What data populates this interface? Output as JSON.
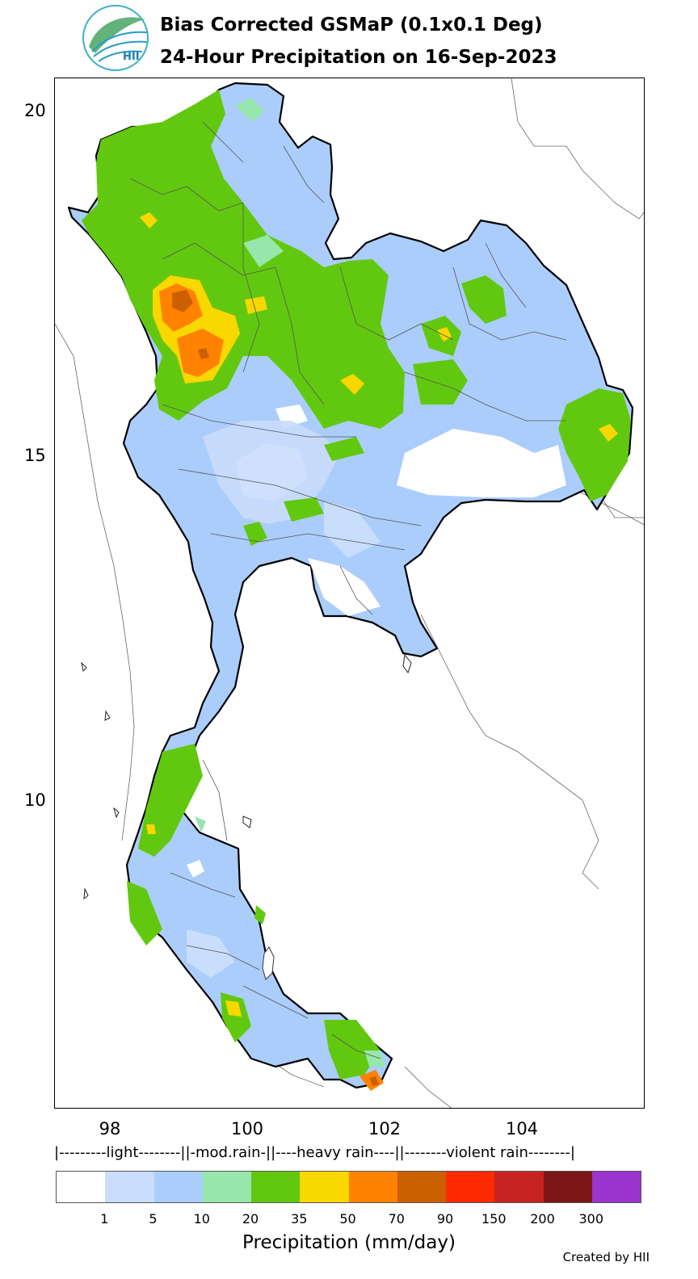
{
  "header": {
    "title_line1": "Bias Corrected GSMaP (0.1x0.1 Deg)",
    "title_line2": "24-Hour Precipitation on 16-Sep-2023",
    "logo_text": "HII"
  },
  "map": {
    "y_ticks": [
      "20",
      "15",
      "10"
    ],
    "x_ticks": [
      "98",
      "100",
      "102",
      "104"
    ]
  },
  "legend": {
    "categories_line": "|---------light--------||-mod.rain-||----heavy rain----||--------violent rain--------|",
    "colors": [
      "#ffffff",
      "#c9ddfc",
      "#abcdfb",
      "#97e6ab",
      "#62c80f",
      "#f9d700",
      "#ff8200",
      "#cc6000",
      "#ff2a00",
      "#c82222",
      "#7d1616",
      "#9b35cf"
    ],
    "ticks": [
      "1",
      "5",
      "10",
      "20",
      "35",
      "50",
      "70",
      "90",
      "150",
      "200",
      "300"
    ],
    "title": "Precipitation (mm/day)"
  },
  "footer": {
    "credit": "Created by HII"
  }
}
